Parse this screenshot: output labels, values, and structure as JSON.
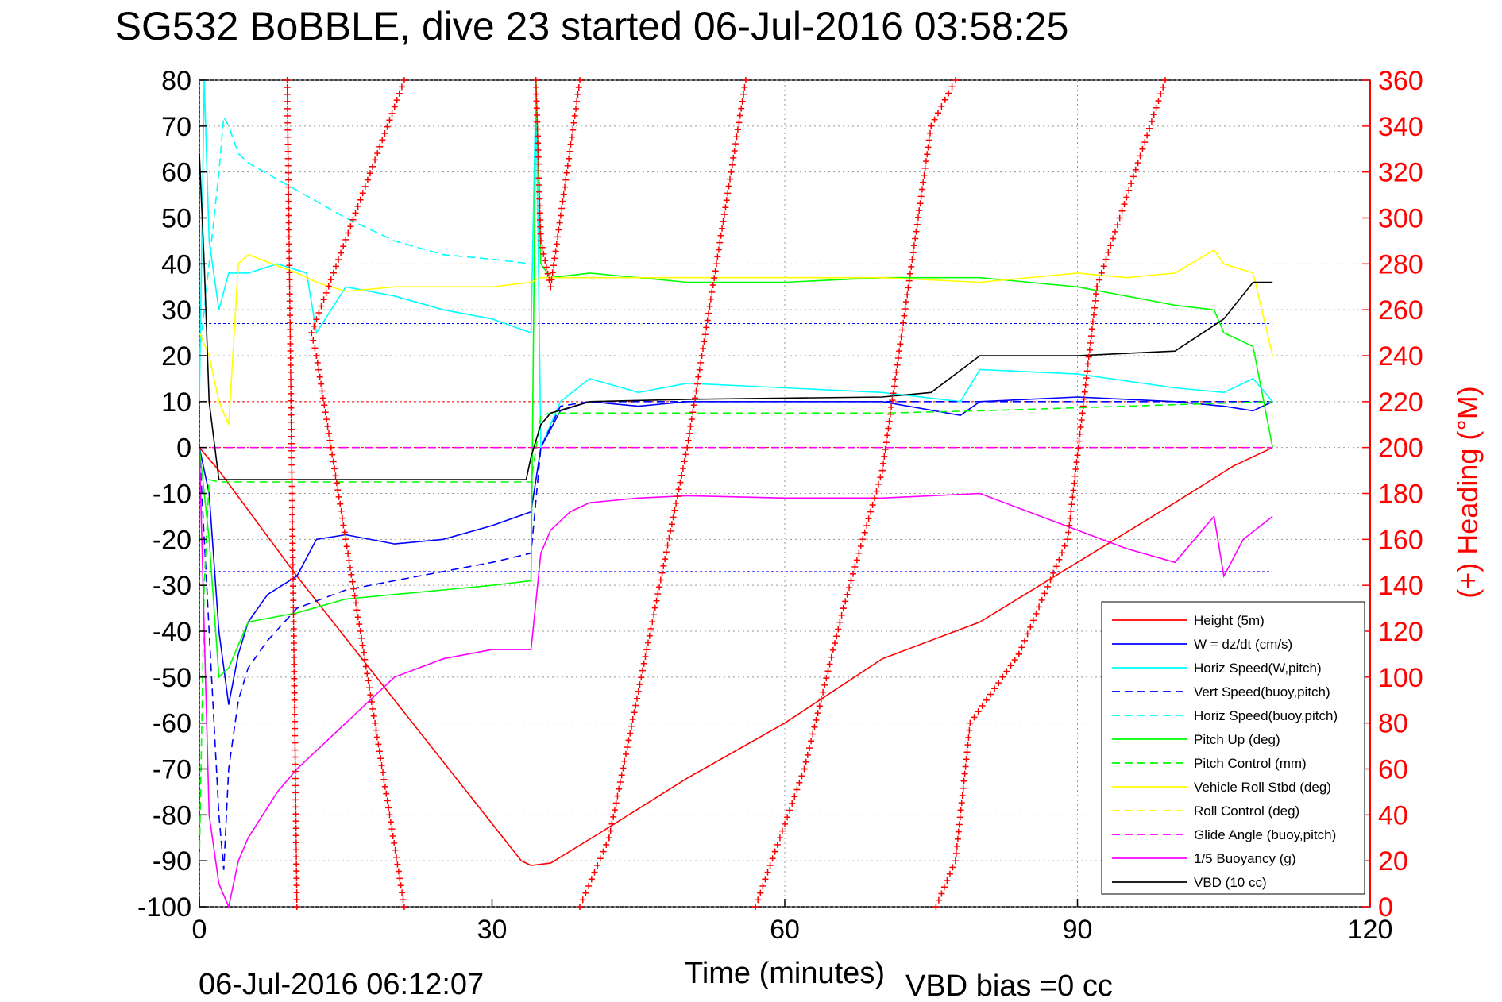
{
  "chart_data": {
    "type": "line",
    "title": "SG532 BoBBLE, dive 23 started 06-Jul-2016 03:58:25",
    "xlabel": "Time (minutes)",
    "ylabel_right": "(+) Heading (°M)",
    "xlim": [
      0,
      120
    ],
    "ylim_left": [
      -100,
      80
    ],
    "ylim_right": [
      0,
      360
    ],
    "x_ticks": [
      "0",
      "30",
      "60",
      "90",
      "120"
    ],
    "y_left_ticks": [
      "80",
      "70",
      "60",
      "50",
      "40",
      "30",
      "20",
      "10",
      "0",
      "-10",
      "-20",
      "-30",
      "-40",
      "-50",
      "-60",
      "-70",
      "-80",
      "-90",
      "-100"
    ],
    "y_right_ticks": [
      "360",
      "340",
      "320",
      "300",
      "280",
      "260",
      "240",
      "220",
      "200",
      "180",
      "160",
      "140",
      "120",
      "100",
      "80",
      "60",
      "40",
      "20",
      "0"
    ],
    "grid": true,
    "legend_position": "lower-right",
    "footer_left": "06-Jul-2016 06:12:07",
    "footer_right": "VBD bias =0 cc",
    "colors": {
      "red": "#ff0000",
      "blue": "#0000ff",
      "cyan": "#00ffff",
      "green": "#00ff00",
      "yellow": "#ffff00",
      "magenta": "#ff00ff",
      "black": "#000000"
    },
    "series": [
      {
        "name": "Height (5m)",
        "color": "#ff0000",
        "style": "solid",
        "x": [
          0,
          2,
          10,
          20,
          33,
          34,
          36,
          41,
          50,
          60,
          70,
          80,
          90,
          100,
          106,
          110
        ],
        "y": [
          0,
          -5,
          -28,
          -55,
          -90,
          -91,
          -90.5,
          -84,
          -72,
          -60,
          -46,
          -38,
          -25,
          -12,
          -4,
          0
        ]
      },
      {
        "name": "W = dz/dt (cm/s)",
        "color": "#0000ff",
        "style": "solid",
        "x": [
          0,
          1,
          2,
          3,
          4,
          5,
          7,
          10,
          12,
          15,
          20,
          25,
          30,
          34,
          35,
          37,
          40,
          45,
          50,
          60,
          70,
          78,
          80,
          90,
          100,
          105,
          108,
          110
        ],
        "y": [
          0,
          -10,
          -40,
          -56,
          -45,
          -38,
          -32,
          -28,
          -20,
          -19,
          -21,
          -20,
          -17,
          -14,
          0,
          8,
          10,
          9,
          10,
          10,
          10,
          7,
          10,
          11,
          10,
          9,
          8,
          10
        ]
      },
      {
        "name": "Horiz Speed(W,pitch)",
        "color": "#00ffff",
        "style": "solid",
        "x": [
          0,
          0.5,
          1,
          2,
          3,
          5,
          8,
          11,
          12,
          15,
          20,
          25,
          30,
          34,
          34.5,
          35,
          37,
          40,
          45,
          50,
          60,
          70,
          78,
          80,
          90,
          100,
          105,
          108,
          110
        ],
        "y": [
          10,
          80,
          45,
          30,
          38,
          38,
          40,
          38,
          25,
          35,
          33,
          30,
          28,
          25,
          80,
          0,
          10,
          15,
          12,
          14,
          13,
          12,
          10,
          17,
          16,
          13,
          12,
          15,
          10
        ]
      },
      {
        "name": "Vert Speed(buoy,pitch)",
        "color": "#0000ff",
        "style": "dashed",
        "x": [
          0,
          1,
          2,
          2.5,
          3,
          4,
          5,
          7,
          10,
          15,
          20,
          25,
          30,
          34,
          35,
          37,
          40,
          50,
          60,
          70,
          80,
          90,
          100,
          110
        ],
        "y": [
          0,
          -40,
          -80,
          -92,
          -70,
          -55,
          -48,
          -42,
          -35,
          -31,
          -29,
          -27,
          -25,
          -23,
          0,
          9,
          10,
          10,
          10,
          10,
          10,
          10,
          10,
          10
        ]
      },
      {
        "name": "Horiz Speed(buoy,pitch)",
        "color": "#00ffff",
        "style": "dashed",
        "x": [
          0,
          1,
          2,
          2.5,
          3,
          4,
          5,
          10,
          15,
          20,
          25,
          30,
          34
        ],
        "y": [
          20,
          40,
          60,
          72,
          70,
          64,
          62,
          56,
          50,
          45,
          42,
          41,
          40
        ]
      },
      {
        "name": "Pitch Up (deg)",
        "color": "#00ff00",
        "style": "solid",
        "x": [
          0,
          1,
          2,
          3,
          5,
          10,
          15,
          20,
          25,
          30,
          34,
          34.5,
          35,
          36,
          40,
          50,
          60,
          70,
          80,
          90,
          95,
          100,
          104,
          105,
          108,
          110
        ],
        "y": [
          0,
          -20,
          -50,
          -48,
          -38,
          -36,
          -33,
          -32,
          -31,
          -30,
          -29,
          80,
          40,
          37,
          38,
          36,
          36,
          37,
          37,
          35,
          33,
          31,
          30,
          25,
          22,
          0
        ]
      },
      {
        "name": "Pitch Control (mm)",
        "color": "#00ff00",
        "style": "dashed",
        "x": [
          0,
          0.5,
          1,
          2,
          34,
          35,
          36,
          70,
          80,
          110
        ],
        "y": [
          -90,
          -30,
          -7,
          -7.5,
          -7.5,
          7,
          7.5,
          7.5,
          8,
          10
        ]
      },
      {
        "name": "Vehicle Roll Stbd (deg)",
        "color": "#ffff00",
        "style": "solid",
        "x": [
          0,
          1,
          2,
          3,
          4,
          5,
          10,
          12,
          15,
          20,
          25,
          30,
          34,
          35,
          40,
          50,
          60,
          70,
          80,
          90,
          95,
          100,
          104,
          105,
          108,
          110
        ],
        "y": [
          25,
          20,
          10,
          5,
          40,
          42,
          38,
          36,
          34,
          35,
          35,
          35,
          36,
          37,
          37,
          37,
          37,
          37,
          36,
          38,
          37,
          38,
          43,
          40,
          38,
          20
        ]
      },
      {
        "name": "Roll Control (deg)",
        "color": "#ffff00",
        "style": "dashed",
        "x": [
          0,
          110
        ],
        "y": [
          0,
          0
        ]
      },
      {
        "name": "Glide Angle (buoy,pitch)",
        "color": "#ff00ff",
        "style": "dashed",
        "x": [
          0,
          110
        ],
        "y": [
          0,
          0
        ]
      },
      {
        "name": "1/5 Buoyancy (g)",
        "color": "#ff00ff",
        "style": "solid",
        "x": [
          0,
          1,
          2,
          3,
          4,
          5,
          8,
          10,
          15,
          20,
          25,
          30,
          34,
          35,
          36,
          38,
          40,
          45,
          50,
          60,
          70,
          80,
          90,
          95,
          100,
          104,
          105,
          107,
          110
        ],
        "y": [
          0,
          -80,
          -95,
          -100,
          -90,
          -85,
          -75,
          -70,
          -60,
          -50,
          -46,
          -44,
          -44,
          -23,
          -18,
          -14,
          -12,
          -11,
          -10.5,
          -11,
          -11,
          -10,
          -18,
          -22,
          -25,
          -15,
          -28,
          -20,
          -15
        ]
      },
      {
        "name": "VBD (10 cc)",
        "color": "#000000",
        "style": "solid",
        "x": [
          0,
          0.5,
          1,
          2,
          33.5,
          34,
          35,
          36,
          40,
          50,
          70,
          75,
          80,
          90,
          100,
          105,
          108,
          110
        ],
        "y": [
          64,
          40,
          10,
          -7,
          -7,
          -2,
          5,
          7.5,
          10,
          10.5,
          11,
          12,
          20,
          20,
          21,
          28,
          36,
          36
        ]
      },
      {
        "name": "Heading",
        "axis": "right",
        "color": "#ff0000",
        "style": "plus-markers",
        "segments": [
          {
            "x": [
              9,
              10
            ],
            "y": [
              360,
              0
            ]
          },
          {
            "x": [
              21,
              11.5,
              12,
              21
            ],
            "y": [
              360,
              250,
              240,
              0
            ]
          },
          {
            "x": [
              34.5,
              35,
              36,
              39
            ],
            "y": [
              360,
              290,
              270,
              360
            ]
          },
          {
            "x": [
              39,
              42,
              50,
              56
            ],
            "y": [
              0,
              30,
              200,
              360
            ]
          },
          {
            "x": [
              57,
              62,
              66,
              70,
              75,
              77.5
            ],
            "y": [
              0,
              60,
              130,
              190,
              340,
              360
            ]
          },
          {
            "x": [
              75.5,
              77.5,
              79,
              84,
              89,
              92,
              99
            ],
            "y": [
              0,
              20,
              80,
              110,
              160,
              270,
              360
            ]
          }
        ]
      }
    ]
  }
}
